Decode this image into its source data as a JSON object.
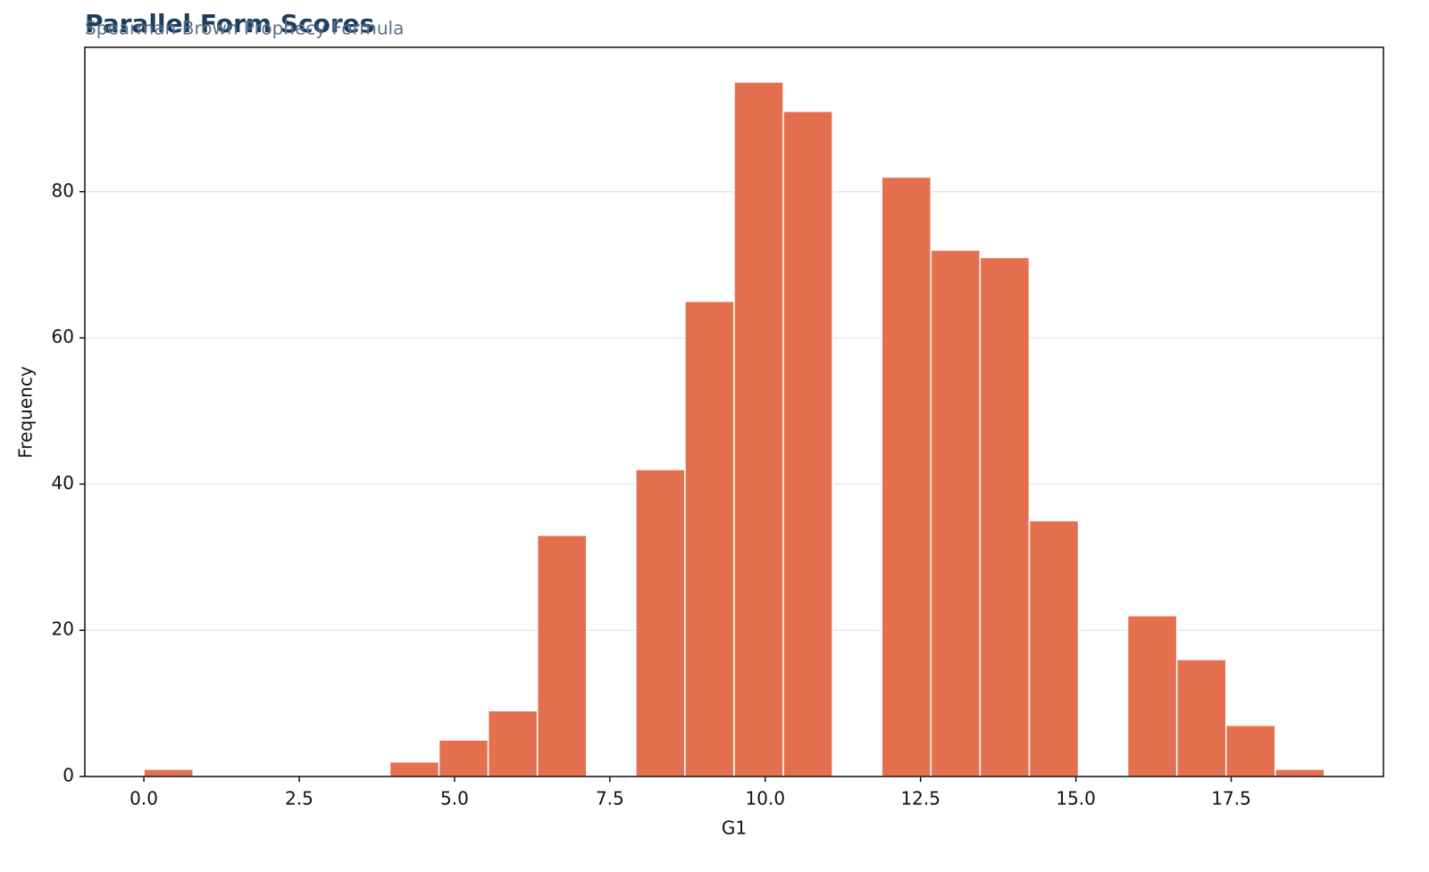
{
  "chart_data": {
    "type": "histogram",
    "title": "Parallel Form Scores",
    "subtitle": "Spearman-Brown Prophecy Formula",
    "x_label": "G1",
    "y_label": "Frequency",
    "color": "#e5704f",
    "grid": true,
    "bins": [
      0,
      0.7917,
      1.5833,
      2.375,
      3.1667,
      3.9583,
      4.75,
      5.5417,
      6.3333,
      7.125,
      7.9167,
      8.7083,
      9.5,
      10.2917,
      11.0833,
      11.875,
      12.6667,
      13.4583,
      14.25,
      15.0417,
      15.8333,
      16.625,
      17.4167,
      18.2083,
      19
    ],
    "values": [
      1,
      0,
      0,
      0,
      0,
      2,
      5,
      9,
      33,
      0,
      42,
      65,
      95,
      91,
      0,
      82,
      72,
      71,
      35,
      0,
      22,
      16,
      7,
      1
    ],
    "xlim": [
      -0.95,
      19.95
    ],
    "xticks": [
      {
        "value": 0,
        "label": "0.0"
      },
      2.5,
      {
        "value": 5,
        "label": "5.0"
      },
      7.5,
      {
        "value": 10,
        "label": "10.0"
      },
      12.5,
      {
        "value": 15,
        "label": "15.0"
      },
      17.5
    ],
    "ylim": [
      0,
      99.75
    ],
    "yticks": [
      0,
      20,
      40,
      60,
      80
    ]
  }
}
